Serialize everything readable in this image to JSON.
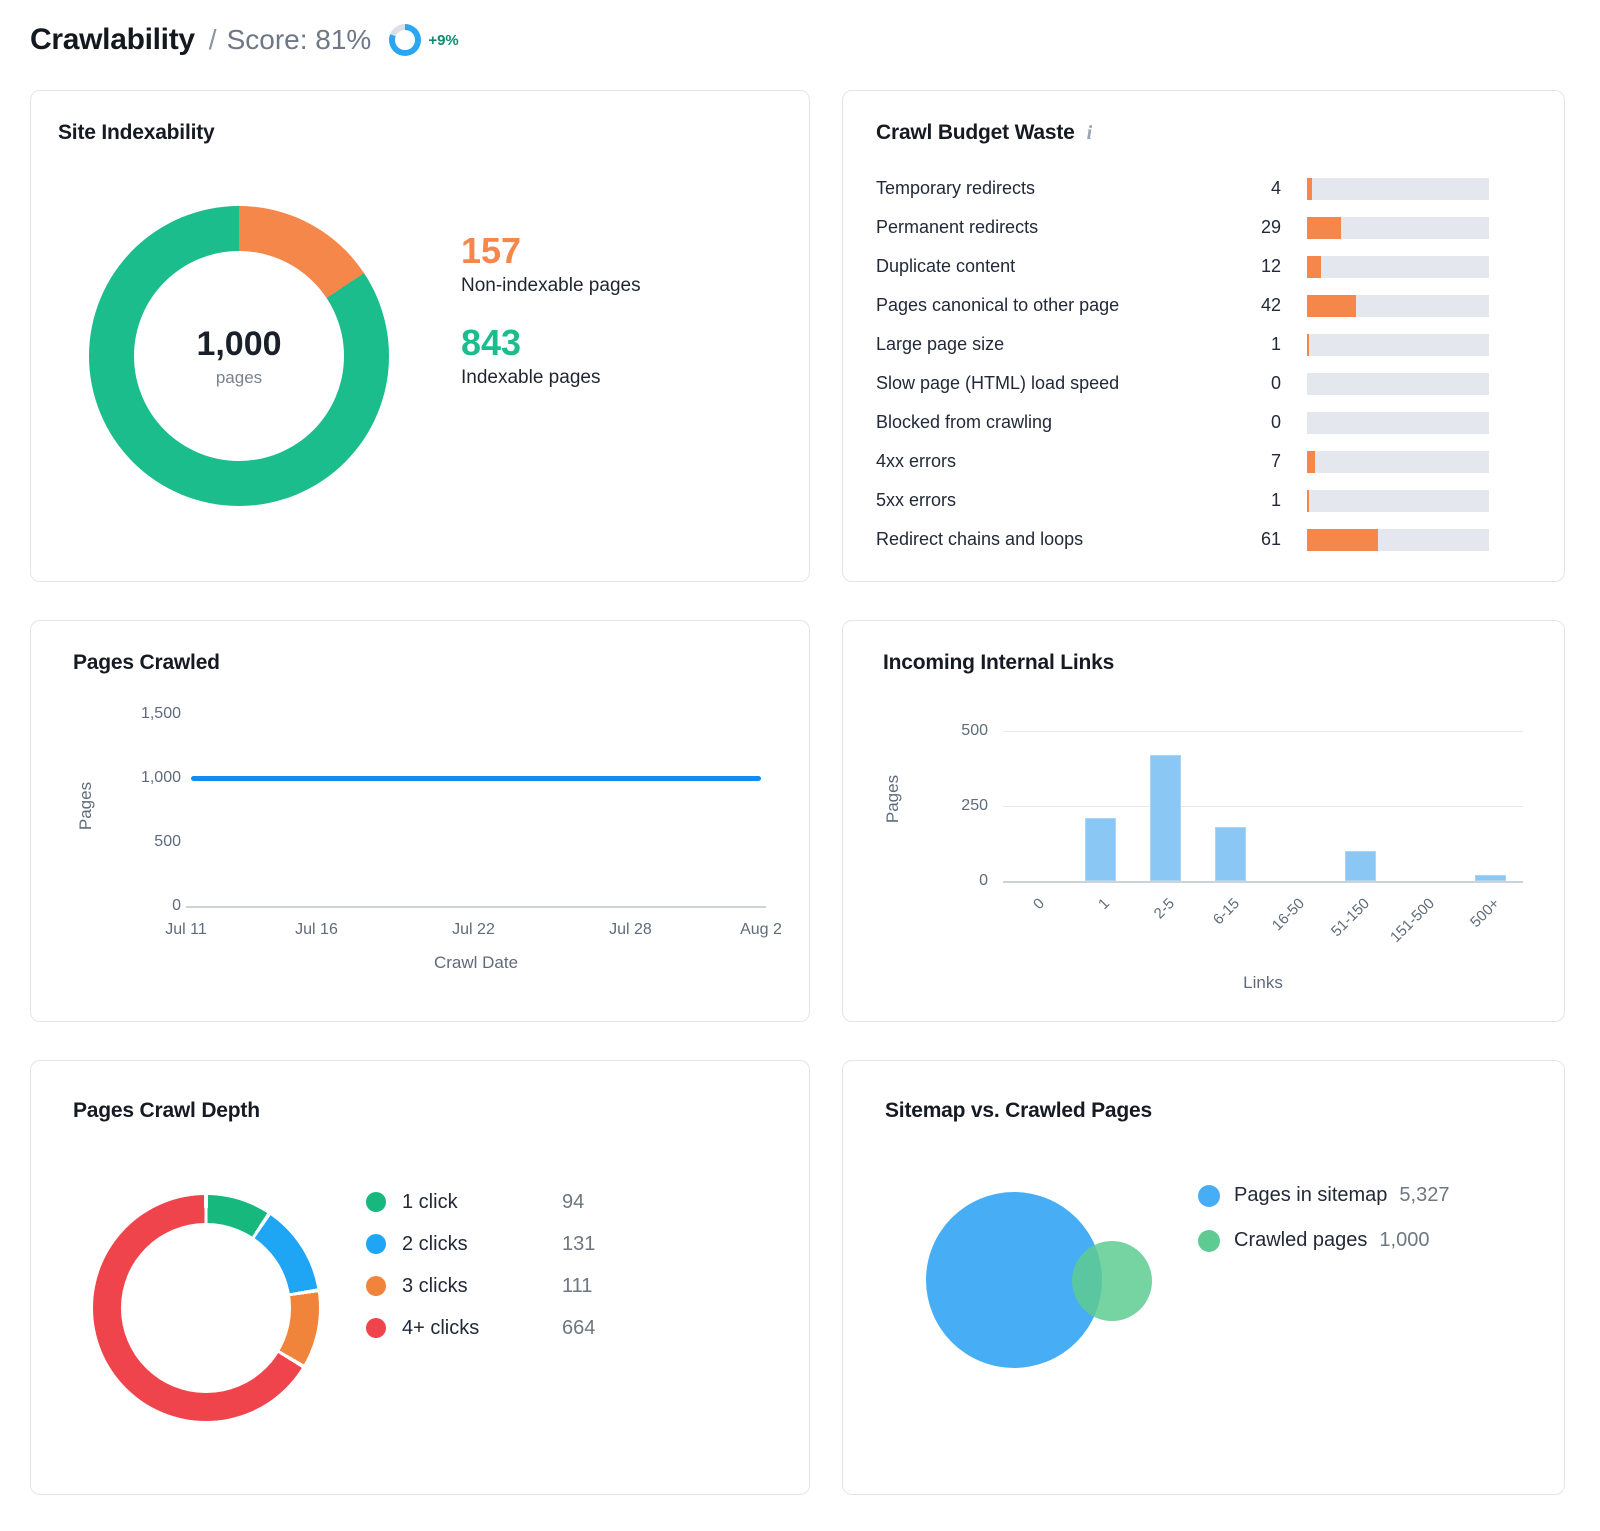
{
  "header": {
    "title": "Crawlability",
    "separator": "/",
    "score": "Score: 81%",
    "score_pct": 81,
    "ring_color": "#2BA7F1",
    "ring_track": "#DCE0E6",
    "delta": "+9%"
  },
  "chart_data": [
    {
      "id": "site-indexability",
      "type": "pie",
      "title": "Site Indexability",
      "center_value": "1,000",
      "center_label": "pages",
      "total": 1000,
      "slices": [
        {
          "label": "Non-indexable pages",
          "value": 157,
          "display": "157",
          "color": "#F5874A"
        },
        {
          "label": "Indexable pages",
          "value": 843,
          "display": "843",
          "color": "#1BBD8D"
        }
      ]
    },
    {
      "id": "crawl-budget-waste",
      "type": "bar",
      "title": "Crawl Budget Waste",
      "info": "i",
      "orientation": "horizontal",
      "axis_max": 157,
      "bar_color": "#F5874A",
      "track_color": "#E4E8EE",
      "categories": [
        "Temporary redirects",
        "Permanent redirects",
        "Duplicate content",
        "Pages canonical to other page",
        "Large page size",
        "Slow page (HTML) load speed",
        "Blocked from crawling",
        "4xx errors",
        "5xx errors",
        "Redirect chains and loops"
      ],
      "values": [
        4,
        29,
        12,
        42,
        1,
        0,
        0,
        7,
        1,
        61
      ]
    },
    {
      "id": "pages-crawled",
      "type": "line",
      "title": "Pages Crawled",
      "xlabel": "Crawl Date",
      "ylabel": "Pages",
      "x": [
        "Jul 11",
        "Jul 16",
        "Jul 22",
        "Jul 28",
        "Aug 2"
      ],
      "x_pos_pct": [
        0,
        22.7,
        50,
        77.3,
        100
      ],
      "yticks": [
        "0",
        "500",
        "1,000",
        "1,500"
      ],
      "ylim": [
        0,
        1500
      ],
      "grid": false,
      "line_color": "#0E8CF1",
      "series": [
        {
          "name": "Pages crawled",
          "values": [
            1000,
            1000,
            1000,
            1000,
            1000
          ]
        }
      ]
    },
    {
      "id": "incoming-internal-links",
      "type": "bar",
      "title": "Incoming Internal Links",
      "xlabel": "Links",
      "ylabel": "Pages",
      "categories": [
        "0",
        "1",
        "2-5",
        "6-15",
        "16-50",
        "51-150",
        "151-500",
        "500+"
      ],
      "values": [
        0,
        210,
        420,
        180,
        0,
        100,
        0,
        20
      ],
      "yticks": [
        "0",
        "250",
        "500"
      ],
      "ylim": [
        0,
        500
      ],
      "grid": true,
      "bar_color": "#8BC7F5"
    },
    {
      "id": "pages-crawl-depth",
      "type": "pie",
      "title": "Pages Crawl Depth",
      "total": 1000,
      "slices": [
        {
          "label": "1 click",
          "value": 94,
          "display": "94",
          "color": "#16B87E"
        },
        {
          "label": "2 clicks",
          "value": 131,
          "display": "131",
          "color": "#1EA5F3"
        },
        {
          "label": "3 clicks",
          "value": 111,
          "display": "111",
          "color": "#F1843B"
        },
        {
          "label": "4+ clicks",
          "value": 664,
          "display": "664",
          "color": "#F0444D"
        }
      ]
    },
    {
      "id": "sitemap-vs-crawled",
      "type": "venn",
      "title": "Sitemap vs. Crawled Pages",
      "sets": [
        {
          "label": "Pages in sitemap",
          "value": 5327,
          "display": "5,327",
          "color": "#47AEF5"
        },
        {
          "label": "Crawled pages",
          "value": 1000,
          "display": "1,000",
          "color": "#5ECB92"
        }
      ]
    }
  ]
}
